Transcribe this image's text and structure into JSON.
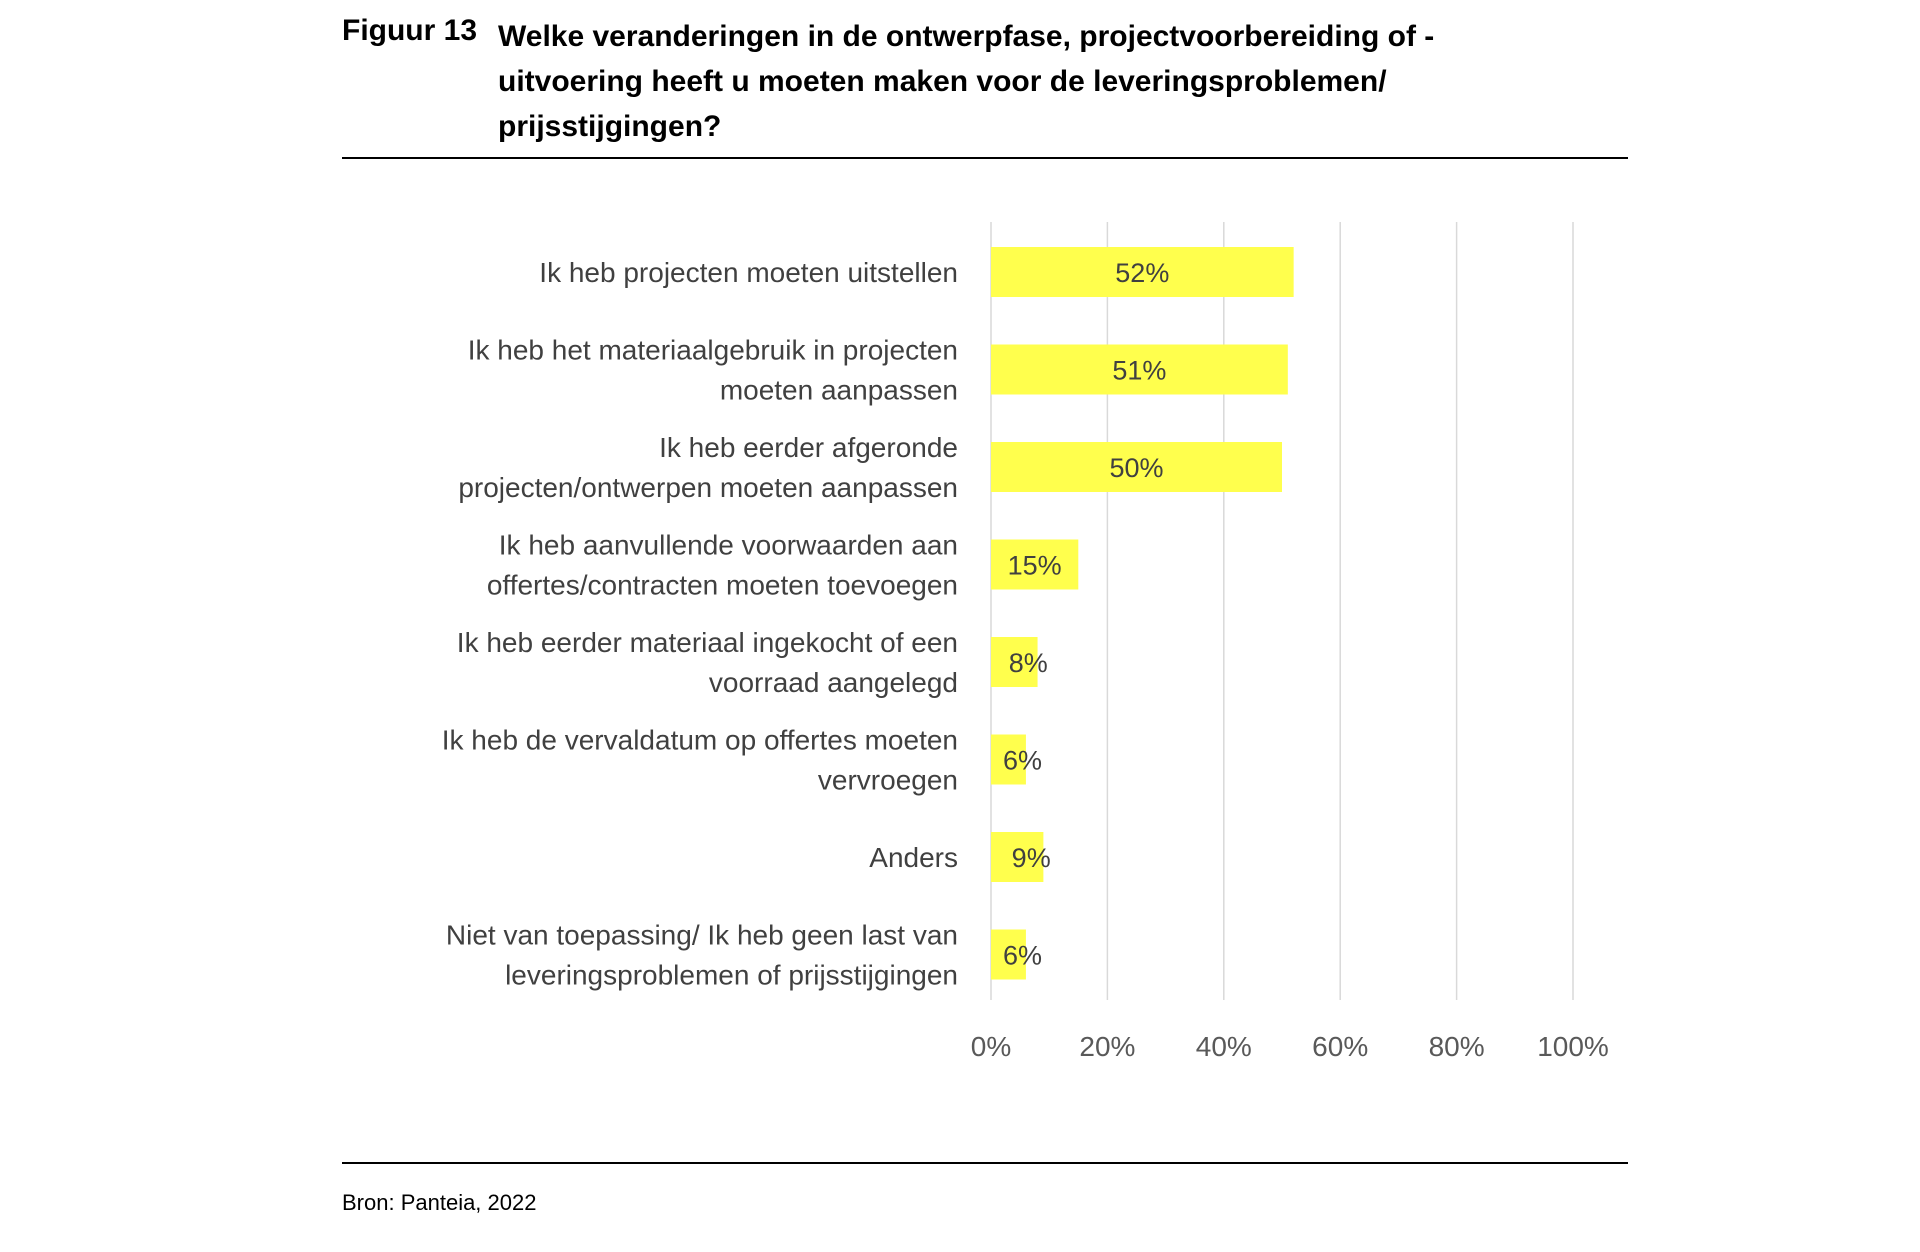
{
  "figure": {
    "number": "Figuur 13",
    "title": "Welke veranderingen in de ontwerpfase, projectvoorbereiding of -\nuitvoering heeft u moeten maken voor de leveringsproblemen/\nprijsstijgingen?"
  },
  "source": "Bron: Panteia, 2022",
  "colors": {
    "bar": "#FFFF4D",
    "grid": "#D9D9D9"
  },
  "chart_data": {
    "type": "bar",
    "orientation": "horizontal",
    "categories": [
      [
        "Ik heb projecten moeten uitstellen"
      ],
      [
        "Ik heb het materiaalgebruik in projecten",
        "moeten aanpassen"
      ],
      [
        "Ik heb eerder afgeronde",
        "projecten/ontwerpen moeten aanpassen"
      ],
      [
        "Ik heb aanvullende voorwaarden aan",
        "offertes/contracten moeten toevoegen"
      ],
      [
        "Ik heb eerder materiaal ingekocht of een",
        "voorraad aangelegd"
      ],
      [
        "Ik heb de vervaldatum op offertes moeten",
        "vervroegen"
      ],
      [
        "Anders"
      ],
      [
        "Niet van toepassing/ Ik heb geen last van",
        "leveringsproblemen of prijsstijgingen"
      ]
    ],
    "values": [
      52,
      51,
      50,
      15,
      8,
      6,
      9,
      6
    ],
    "data_labels": [
      "52%",
      "51%",
      "50%",
      "15%",
      "8%",
      "6%",
      "9%",
      "6%"
    ],
    "xlim": [
      0,
      100
    ],
    "xticks": [
      0,
      20,
      40,
      60,
      80,
      100
    ],
    "xtick_labels": [
      "0%",
      "20%",
      "40%",
      "60%",
      "80%",
      "100%"
    ],
    "grid": true,
    "legend": false
  }
}
